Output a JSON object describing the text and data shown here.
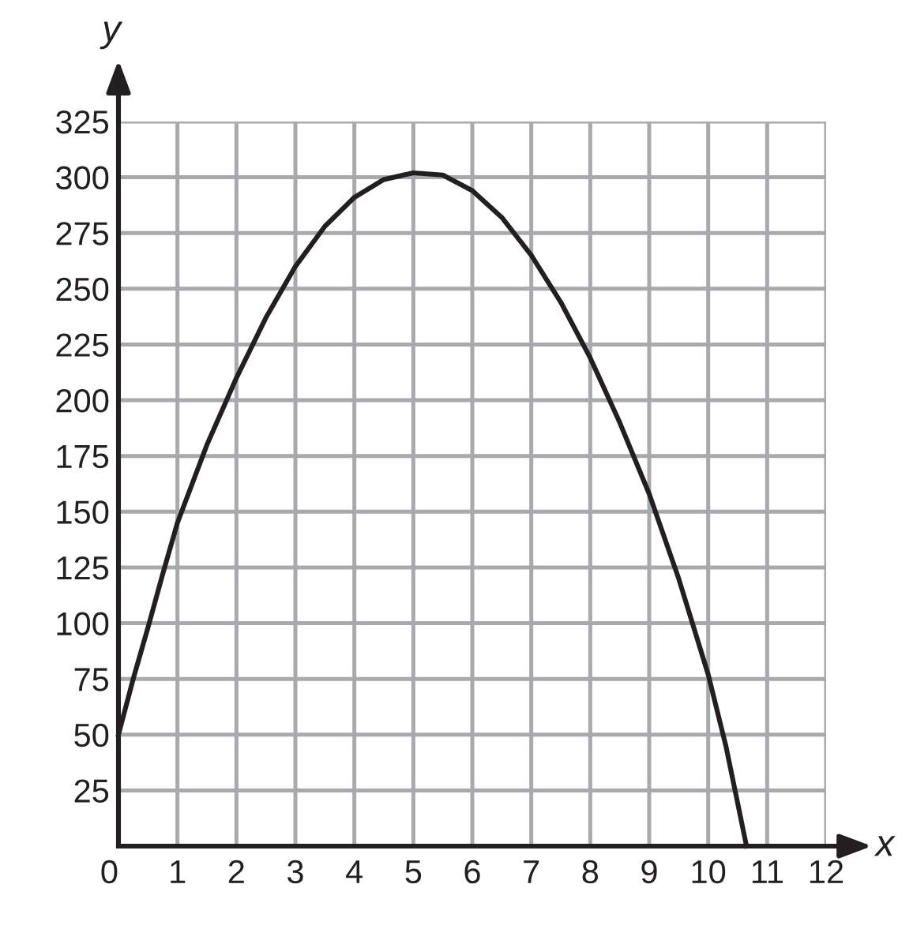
{
  "chart_data": {
    "type": "line",
    "xlabel": "x",
    "ylabel": "y",
    "x": [
      0,
      0.25,
      0.5,
      0.75,
      1,
      1.5,
      2,
      2.5,
      3,
      3.5,
      4,
      4.5,
      5,
      5.5,
      6,
      6.5,
      7,
      7.5,
      8,
      8.5,
      9,
      9.5,
      10,
      10.3,
      10.65
    ],
    "series": [
      {
        "color": "#231f20",
        "values": [
          50,
          75,
          98,
          122,
          145,
          180,
          210,
          237,
          260,
          278,
          291,
          299,
          302,
          301,
          294,
          282,
          265,
          244,
          219,
          190,
          158,
          120,
          77,
          45,
          0
        ]
      }
    ],
    "xlim": [
      0,
      12
    ],
    "ylim": [
      0,
      325
    ],
    "xticks": [
      0,
      1,
      2,
      3,
      4,
      5,
      6,
      7,
      8,
      9,
      10,
      11,
      12
    ],
    "yticks": [
      25,
      50,
      75,
      100,
      125,
      150,
      175,
      200,
      225,
      250,
      275,
      300,
      325
    ],
    "grid": true,
    "marker": "none",
    "line_style": "solid"
  }
}
